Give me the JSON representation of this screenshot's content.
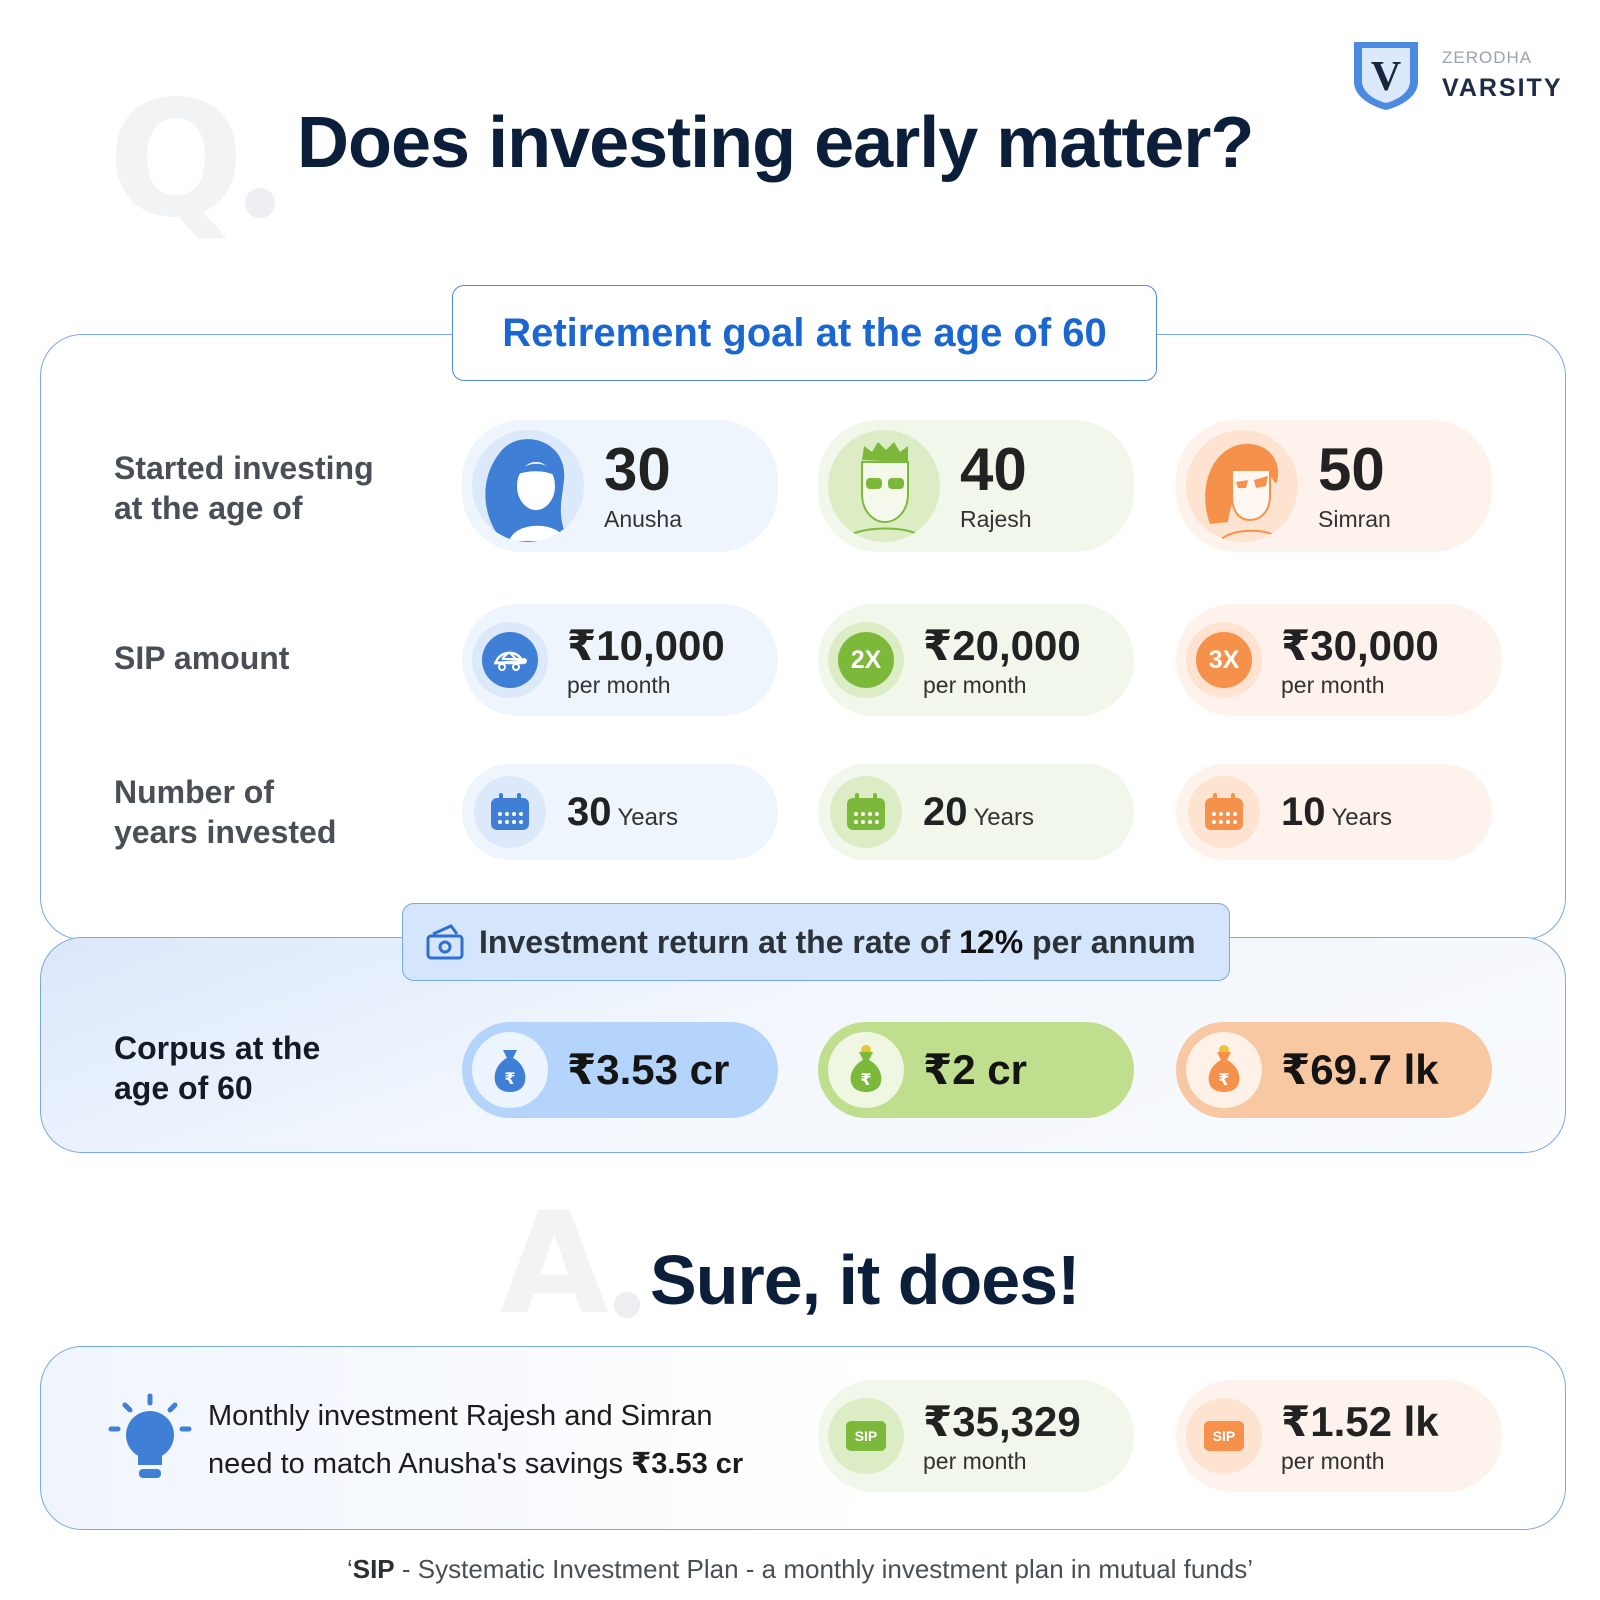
{
  "header": {
    "question_letter": "Q",
    "title": "Does investing early matter?",
    "answer_letter": "A",
    "answer": "Sure, it does!"
  },
  "logo": {
    "brand": "ZERODHA",
    "name": "VARSITY",
    "monogram": "V",
    "icon": "shield-icon"
  },
  "goal": {
    "label": "Retirement goal at the age of 60"
  },
  "rows": {
    "started": {
      "label": "Started investing\nat the  age of"
    },
    "sip": {
      "label": "SIP amount"
    },
    "years": {
      "label": "Number of\nyears invested"
    }
  },
  "investors": [
    {
      "name": "Anusha",
      "age": "30",
      "accent": "#3f7fd6",
      "sip_icon": "turtle-icon",
      "sip_amount": "₹10,000",
      "sip_period": "per month",
      "years": "30",
      "years_unit": "Years",
      "corpus": "₹3.53 cr"
    },
    {
      "name": "Rajesh",
      "age": "40",
      "accent": "#7cb93a",
      "sip_badge": "2X",
      "sip_amount": "₹20,000",
      "sip_period": "per month",
      "years": "20",
      "years_unit": "Years",
      "corpus": "₹2 cr"
    },
    {
      "name": "Simran",
      "age": "50",
      "accent": "#f5914a",
      "sip_badge": "3X",
      "sip_amount": "₹30,000",
      "sip_period": "per month",
      "years": "10",
      "years_unit": "Years",
      "corpus": "₹69.7 lk"
    }
  ],
  "rate": {
    "prefix": "Investment return at the rate of ",
    "value": "12%",
    "suffix": " per annum",
    "icon": "money-icon"
  },
  "corpus": {
    "label": "Corpus at the\nage of 60",
    "icon": "money-bag-icon"
  },
  "match": {
    "icon": "lightbulb-icon",
    "line1": "Monthly investment Rajesh and Simran",
    "line2_prefix": "need to match Anusha's savings ",
    "line2_amount": "₹3.53 cr",
    "badge": "SIP",
    "required": [
      {
        "name": "Rajesh",
        "amount": "₹35,329",
        "period": "per month"
      },
      {
        "name": "Simran",
        "amount": "₹1.52 lk",
        "period": "per month"
      }
    ]
  },
  "footnote": {
    "open_quote": "‘",
    "term": "SIP",
    "definition": " - Systematic Investment Plan - a monthly investment plan in mutual funds",
    "close_quote": "’"
  },
  "colors": {
    "navy": "#0c1f3a",
    "blue": "#3f7fd6",
    "green": "#7cb93a",
    "orange": "#f5914a",
    "border": "#77a9e8"
  }
}
